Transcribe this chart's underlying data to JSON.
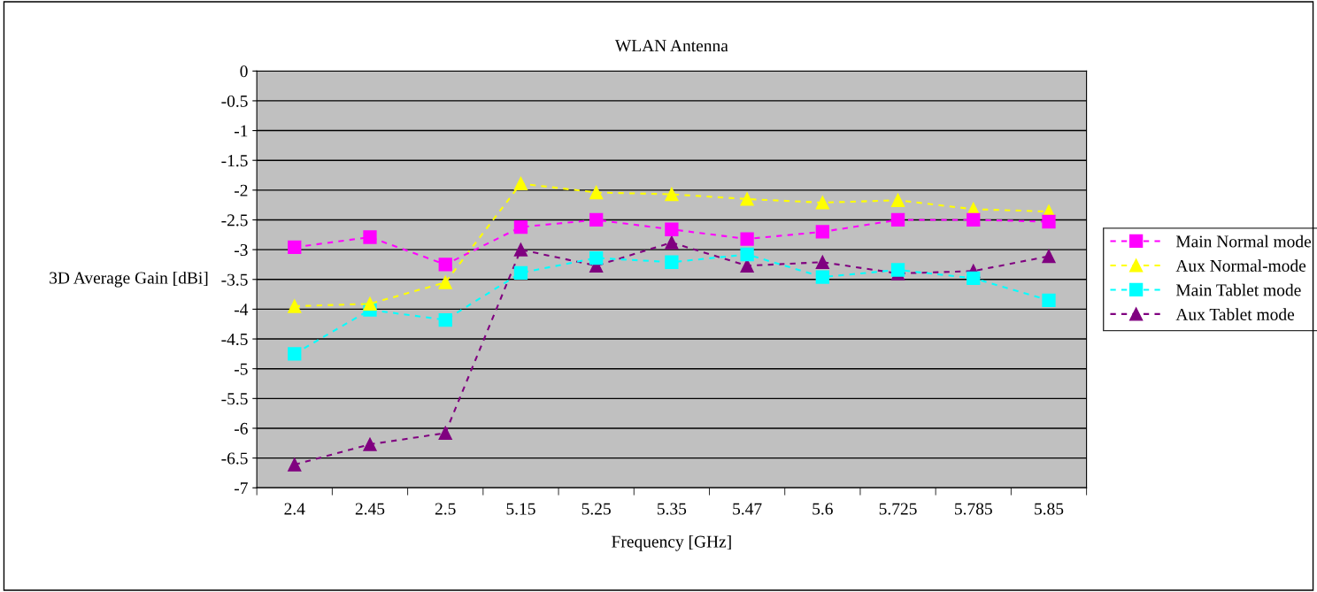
{
  "chart_data": {
    "type": "line",
    "title": "WLAN Antenna",
    "xlabel": "Frequency [GHz]",
    "ylabel": "3D Average Gain [dBi]",
    "categories": [
      "2.4",
      "2.45",
      "2.5",
      "5.15",
      "5.25",
      "5.35",
      "5.47",
      "5.6",
      "5.725",
      "5.785",
      "5.85"
    ],
    "series": [
      {
        "name": "Main Normal mode",
        "color": "#ff00ff",
        "marker": "square",
        "values": [
          -2.96,
          -2.79,
          -3.25,
          -2.62,
          -2.5,
          -2.66,
          -2.82,
          -2.7,
          -2.5,
          -2.5,
          -2.53
        ]
      },
      {
        "name": "Aux Normal-mode",
        "color": "#ffff00",
        "marker": "triangle",
        "values": [
          -3.95,
          -3.91,
          -3.55,
          -1.89,
          -2.04,
          -2.07,
          -2.15,
          -2.21,
          -2.17,
          -2.32,
          -2.36
        ]
      },
      {
        "name": "Main Tablet mode",
        "color": "#00ffff",
        "marker": "square",
        "values": [
          -4.75,
          -4.01,
          -4.18,
          -3.39,
          -3.14,
          -3.21,
          -3.08,
          -3.46,
          -3.34,
          -3.48,
          -3.85
        ]
      },
      {
        "name": "Aux Tablet mode",
        "color": "#800080",
        "marker": "triangle",
        "values": [
          -6.61,
          -6.27,
          -6.08,
          -3.0,
          -3.27,
          -2.88,
          -3.27,
          -3.21,
          -3.4,
          -3.36,
          -3.11
        ]
      }
    ],
    "ylim": [
      -7,
      0
    ],
    "yticks": [
      {
        "value": 0,
        "label": "0"
      },
      {
        "value": -0.5,
        "label": "-0.5"
      },
      {
        "value": -1,
        "label": "-1"
      },
      {
        "value": -1.5,
        "label": "-1.5"
      },
      {
        "value": -2,
        "label": "-2"
      },
      {
        "value": -2.5,
        "label": "-2.5"
      },
      {
        "value": -3,
        "label": "-3"
      },
      {
        "value": -3.5,
        "label": "-3.5"
      },
      {
        "value": -4,
        "label": "-4"
      },
      {
        "value": -4.5,
        "label": "-4.5"
      },
      {
        "value": -5,
        "label": "-5"
      },
      {
        "value": -5.5,
        "label": "-5.5"
      },
      {
        "value": -6,
        "label": "-6"
      },
      {
        "value": -6.5,
        "label": "-6.5"
      },
      {
        "value": -7,
        "label": "-7"
      }
    ],
    "grid": "y",
    "legend": "right",
    "line_style": "dashed"
  }
}
